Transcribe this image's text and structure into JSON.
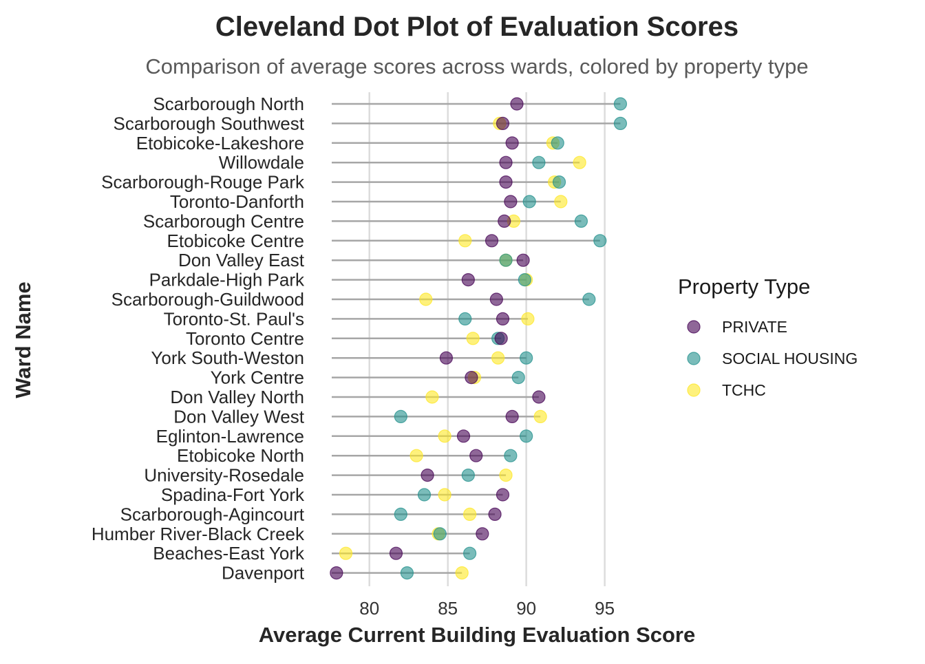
{
  "chart_data": {
    "type": "scatter",
    "title": "Cleveland Dot Plot of Evaluation Scores",
    "subtitle": "Comparison of average scores across wards, colored by property type",
    "xlabel": "Average Current Building Evaluation Score",
    "ylabel": "Ward Name",
    "xlim": [
      77.6,
      96.2
    ],
    "x_ticks": [
      80,
      85,
      90,
      95
    ],
    "grid": "vertical major gridlines",
    "legend": {
      "title": "Property Type",
      "position": "right"
    },
    "series": [
      {
        "name": "PRIVATE",
        "color": "#440154"
      },
      {
        "name": "SOCIAL HOUSING",
        "color": "#21908C"
      },
      {
        "name": "TCHC",
        "color": "#FDE725"
      }
    ],
    "wards": [
      {
        "ward": "Scarborough North",
        "PRIVATE": 89.4,
        "SOCIAL HOUSING": 96.0,
        "TCHC": null
      },
      {
        "ward": "Scarborough Southwest",
        "PRIVATE": 88.5,
        "SOCIAL HOUSING": 96.0,
        "TCHC": 88.3
      },
      {
        "ward": "Etobicoke-Lakeshore",
        "PRIVATE": 89.1,
        "SOCIAL HOUSING": 92.0,
        "TCHC": 91.7
      },
      {
        "ward": "Willowdale",
        "PRIVATE": 88.7,
        "SOCIAL HOUSING": 90.8,
        "TCHC": 93.4
      },
      {
        "ward": "Scarborough-Rouge Park",
        "PRIVATE": 88.7,
        "SOCIAL HOUSING": 92.1,
        "TCHC": 91.8
      },
      {
        "ward": "Toronto-Danforth",
        "PRIVATE": 89.0,
        "SOCIAL HOUSING": 90.2,
        "TCHC": 92.2
      },
      {
        "ward": "Scarborough Centre",
        "PRIVATE": 88.6,
        "SOCIAL HOUSING": 93.5,
        "TCHC": 89.2
      },
      {
        "ward": "Etobicoke Centre",
        "PRIVATE": 87.8,
        "SOCIAL HOUSING": 94.7,
        "TCHC": 86.1
      },
      {
        "ward": "Don Valley East",
        "PRIVATE": 89.8,
        "SOCIAL HOUSING": 88.7,
        "TCHC": 88.7
      },
      {
        "ward": "Parkdale-High Park",
        "PRIVATE": 86.3,
        "SOCIAL HOUSING": 89.9,
        "TCHC": 90.0
      },
      {
        "ward": "Scarborough-Guildwood",
        "PRIVATE": 88.1,
        "SOCIAL HOUSING": 94.0,
        "TCHC": 83.6
      },
      {
        "ward": "Toronto-St. Paul's",
        "PRIVATE": 88.5,
        "SOCIAL HOUSING": 86.1,
        "TCHC": 90.1
      },
      {
        "ward": "Toronto Centre",
        "PRIVATE": 88.4,
        "SOCIAL HOUSING": 88.2,
        "TCHC": 86.6
      },
      {
        "ward": "York South-Weston",
        "PRIVATE": 84.9,
        "SOCIAL HOUSING": 90.0,
        "TCHC": 88.2
      },
      {
        "ward": "York Centre",
        "PRIVATE": 86.5,
        "SOCIAL HOUSING": 89.5,
        "TCHC": 86.7
      },
      {
        "ward": "Don Valley North",
        "PRIVATE": 90.8,
        "SOCIAL HOUSING": null,
        "TCHC": 84.0
      },
      {
        "ward": "Don Valley West",
        "PRIVATE": 89.1,
        "SOCIAL HOUSING": 82.0,
        "TCHC": 90.9
      },
      {
        "ward": "Eglinton-Lawrence",
        "PRIVATE": 86.0,
        "SOCIAL HOUSING": 90.0,
        "TCHC": 84.8
      },
      {
        "ward": "Etobicoke North",
        "PRIVATE": 86.8,
        "SOCIAL HOUSING": 89.0,
        "TCHC": 83.0
      },
      {
        "ward": "University-Rosedale",
        "PRIVATE": 83.7,
        "SOCIAL HOUSING": 86.3,
        "TCHC": 88.7
      },
      {
        "ward": "Spadina-Fort York",
        "PRIVATE": 88.5,
        "SOCIAL HOUSING": 83.5,
        "TCHC": 84.8
      },
      {
        "ward": "Scarborough-Agincourt",
        "PRIVATE": 88.0,
        "SOCIAL HOUSING": 82.0,
        "TCHC": 86.4
      },
      {
        "ward": "Humber River-Black Creek",
        "PRIVATE": 87.2,
        "SOCIAL HOUSING": 84.5,
        "TCHC": 84.4
      },
      {
        "ward": "Beaches-East York",
        "PRIVATE": 81.7,
        "SOCIAL HOUSING": 86.4,
        "TCHC": 78.5
      },
      {
        "ward": "Davenport",
        "PRIVATE": 77.9,
        "SOCIAL HOUSING": 82.4,
        "TCHC": 85.9
      }
    ]
  }
}
